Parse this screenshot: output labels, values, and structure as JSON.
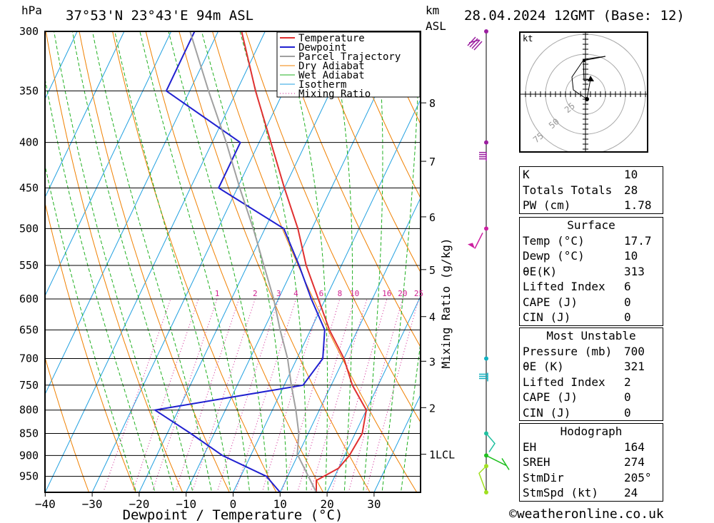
{
  "header": {
    "location": "37°53'N 23°43'E 94m ASL",
    "datetime": "28.04.2024 12GMT (Base: 12)",
    "hpa_label": "hPa",
    "km_label": "km",
    "asl_label": "ASL"
  },
  "chart_data": {
    "type": "skew-t log-p",
    "xlabel": "Dewpoint / Temperature (°C)",
    "ylabel_right": "Mixing Ratio (g/kg)",
    "x_ticks": [
      -40,
      -30,
      -20,
      -10,
      0,
      10,
      20,
      30
    ],
    "x_tick_labels": [
      "−40",
      "−30",
      "−20",
      "−10",
      "0",
      "10",
      "20",
      "30"
    ],
    "pressure_levels": [
      300,
      350,
      400,
      450,
      500,
      550,
      600,
      650,
      700,
      750,
      800,
      850,
      900,
      950
    ],
    "pressure_range": [
      300,
      990
    ],
    "km_ticks": [
      {
        "label": "8",
        "p": 361
      },
      {
        "label": "7",
        "p": 420
      },
      {
        "label": "6",
        "p": 485
      },
      {
        "label": "5",
        "p": 556
      },
      {
        "label": "4",
        "p": 628
      },
      {
        "label": "3",
        "p": 705
      },
      {
        "label": "2",
        "p": 795
      },
      {
        "label": "1LCL",
        "p": 897
      }
    ],
    "mixing_ratio_labels": [
      1,
      2,
      3,
      4,
      6,
      8,
      10,
      16,
      20,
      25
    ],
    "legend": [
      "Temperature",
      "Dewpoint",
      "Parcel Trajectory",
      "Dry Adiabat",
      "Wet Adiabat",
      "Isotherm",
      "Mixing Ratio"
    ],
    "series": [
      {
        "name": "Temperature",
        "color": "#e03030",
        "points": [
          [
            990,
            17.7
          ],
          [
            960,
            16.5
          ],
          [
            930,
            20.0
          ],
          [
            900,
            21.0
          ],
          [
            850,
            21.5
          ],
          [
            800,
            20.0
          ],
          [
            750,
            14.5
          ],
          [
            700,
            10.0
          ],
          [
            650,
            4.0
          ],
          [
            600,
            -1.5
          ],
          [
            550,
            -7.5
          ],
          [
            500,
            -13.0
          ],
          [
            450,
            -20.0
          ],
          [
            400,
            -27.5
          ],
          [
            350,
            -36.0
          ],
          [
            300,
            -45.0
          ]
        ]
      },
      {
        "name": "Dewpoint",
        "color": "#2020d0",
        "points": [
          [
            990,
            10.0
          ],
          [
            950,
            5.5
          ],
          [
            900,
            -6.0
          ],
          [
            850,
            -15.0
          ],
          [
            800,
            -25.0
          ],
          [
            750,
            4.0
          ],
          [
            700,
            5.5
          ],
          [
            650,
            3.0
          ],
          [
            600,
            -3.0
          ],
          [
            550,
            -9.0
          ],
          [
            500,
            -16.0
          ],
          [
            450,
            -34.0
          ],
          [
            400,
            -34.0
          ],
          [
            350,
            -55.0
          ],
          [
            300,
            -55.0
          ]
        ]
      },
      {
        "name": "Parcel Trajectory",
        "color": "#a0a0a0",
        "points": [
          [
            990,
            17.7
          ],
          [
            897,
            9.8
          ],
          [
            850,
            8.0
          ],
          [
            800,
            5.0
          ],
          [
            750,
            1.5
          ],
          [
            700,
            -2.0
          ],
          [
            650,
            -6.5
          ],
          [
            600,
            -11.0
          ],
          [
            550,
            -16.5
          ],
          [
            500,
            -22.5
          ],
          [
            450,
            -29.5
          ],
          [
            400,
            -37.0
          ],
          [
            350,
            -46.0
          ],
          [
            300,
            -56.0
          ]
        ]
      }
    ],
    "wind_profile": [
      {
        "p": 300,
        "color": "#9b1fa0"
      },
      {
        "p": 400,
        "color": "#9b1fa0"
      },
      {
        "p": 500,
        "color": "#cc1fa0"
      },
      {
        "p": 700,
        "color": "#10b0c0"
      },
      {
        "p": 850,
        "color": "#20c0a0"
      },
      {
        "p": 900,
        "color": "#20c020"
      },
      {
        "p": 925,
        "color": "#a0e020"
      },
      {
        "p": 990,
        "color": "#a0e020"
      }
    ]
  },
  "hodograph": {
    "unit_label": "kt",
    "ring_labels": [
      "25",
      "50",
      "75"
    ]
  },
  "indices": {
    "rows": [
      {
        "k": "K",
        "v": "10"
      },
      {
        "k": "Totals Totals",
        "v": "28"
      },
      {
        "k": "PW (cm)",
        "v": "1.78"
      }
    ]
  },
  "surface": {
    "title": "Surface",
    "temp_label": "Temp (°C)",
    "temp": "17.7",
    "dewp_label": "Dewp (°C)",
    "dewp": "10",
    "theta_label": "θE(K)",
    "theta": "313",
    "li_label": "Lifted Index",
    "li": "6",
    "cape_label": "CAPE (J)",
    "cape": "0",
    "cin_label": "CIN (J)",
    "cin": "0"
  },
  "most_unstable": {
    "title": "Most Unstable",
    "pressure_label": "Pressure (mb)",
    "pressure": "700",
    "theta_label": "θE (K)",
    "theta": "321",
    "li_label": "Lifted Index",
    "li": "2",
    "cape_label": "CAPE (J)",
    "cape": "0",
    "cin_label": "CIN (J)",
    "cin": "0"
  },
  "hodograph_stats": {
    "title": "Hodograph",
    "eh_label": "EH",
    "eh": "164",
    "sreh_label": "SREH",
    "sreh": "274",
    "stmdir_label": "StmDir",
    "stmdir": "205°",
    "stmspd_label": "StmSpd (kt)",
    "stmspd": "24"
  },
  "footer": {
    "copyright": "©weatheronline.co.uk"
  }
}
